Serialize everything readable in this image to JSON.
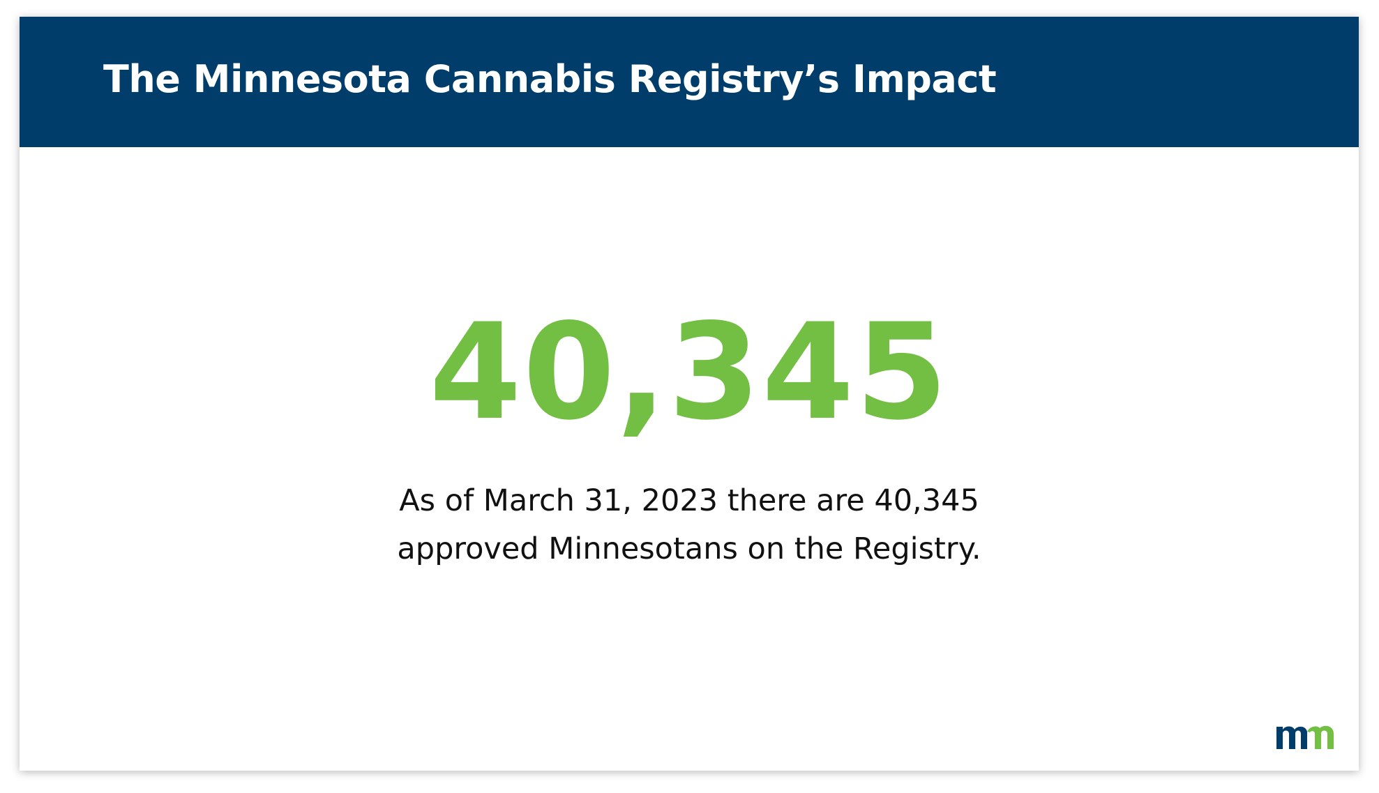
{
  "header": {
    "title": "The Minnesota Cannabis Registry’s Impact"
  },
  "stat": {
    "value": "40,345",
    "caption": [
      "As of March 31, 2023 there are 40,345",
      "approved Minnesotans on the Registry."
    ]
  }
}
